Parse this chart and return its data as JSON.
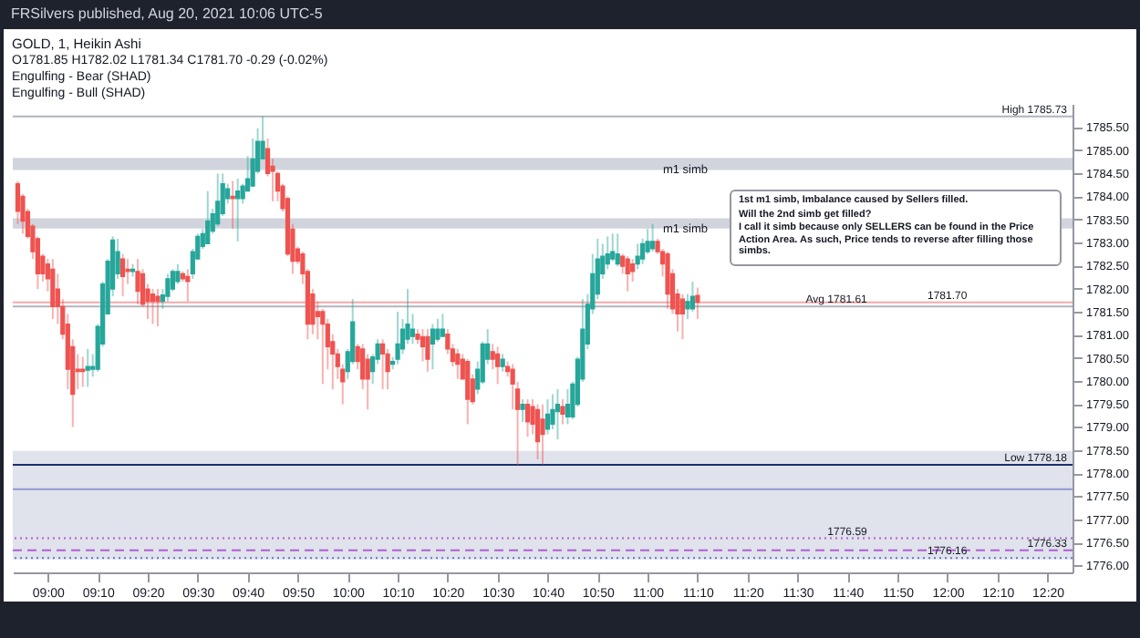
{
  "chart_data": {
    "type": "candlestick",
    "title": "GOLD, 1, Heikin Ashi",
    "subtitle": "O1781.85 H1782.02 L1781.34 C1781.70 -0.29 (-0.02%)",
    "annotations": [
      "FRSilvers published, Aug 20, 2021 10:06 UTC-5",
      "Engulfing - Bear (SHAD)",
      "Engulfing - Bull (SHAD)",
      "1st m1 simb, Imbalance caused by Sellers filled.",
      "Will the 2nd simb get filled?",
      "I call it simb because only SELLERS can be found in the Price Action Area. As such, Price tends to reverse after filling those simbs."
    ],
    "x": [
      "2021-08-20T08:54",
      "2021-08-20T08:55",
      "2021-08-20T08:56",
      "2021-08-20T08:57",
      "2021-08-20T08:58",
      "2021-08-20T08:59",
      "2021-08-20T09:00",
      "2021-08-20T09:01",
      "2021-08-20T09:02",
      "2021-08-20T09:03",
      "2021-08-20T09:04",
      "2021-08-20T09:05",
      "2021-08-20T09:06",
      "2021-08-20T09:07",
      "2021-08-20T09:08",
      "2021-08-20T09:09",
      "2021-08-20T09:10",
      "2021-08-20T09:11",
      "2021-08-20T09:12",
      "2021-08-20T09:13",
      "2021-08-20T09:14",
      "2021-08-20T09:15",
      "2021-08-20T09:16",
      "2021-08-20T09:17",
      "2021-08-20T09:18",
      "2021-08-20T09:19",
      "2021-08-20T09:20",
      "2021-08-20T09:21",
      "2021-08-20T09:22",
      "2021-08-20T09:23",
      "2021-08-20T09:24",
      "2021-08-20T09:25",
      "2021-08-20T09:26",
      "2021-08-20T09:27",
      "2021-08-20T09:28",
      "2021-08-20T09:29",
      "2021-08-20T09:30",
      "2021-08-20T09:31",
      "2021-08-20T09:32",
      "2021-08-20T09:33",
      "2021-08-20T09:34",
      "2021-08-20T09:35",
      "2021-08-20T09:36",
      "2021-08-20T09:37",
      "2021-08-20T09:38",
      "2021-08-20T09:39",
      "2021-08-20T09:40",
      "2021-08-20T09:41",
      "2021-08-20T09:42",
      "2021-08-20T09:43",
      "2021-08-20T09:44",
      "2021-08-20T09:45",
      "2021-08-20T09:46",
      "2021-08-20T09:47",
      "2021-08-20T09:48",
      "2021-08-20T09:49",
      "2021-08-20T09:50",
      "2021-08-20T09:51",
      "2021-08-20T09:52",
      "2021-08-20T09:53",
      "2021-08-20T09:54",
      "2021-08-20T09:55",
      "2021-08-20T09:56",
      "2021-08-20T09:57",
      "2021-08-20T09:58",
      "2021-08-20T09:59",
      "2021-08-20T10:00",
      "2021-08-20T10:01",
      "2021-08-20T10:02",
      "2021-08-20T10:03",
      "2021-08-20T10:04",
      "2021-08-20T10:05",
      "2021-08-20T10:06",
      "2021-08-20T10:07",
      "2021-08-20T10:08",
      "2021-08-20T10:09",
      "2021-08-20T10:10",
      "2021-08-20T10:11",
      "2021-08-20T10:12",
      "2021-08-20T10:13",
      "2021-08-20T10:14",
      "2021-08-20T10:15",
      "2021-08-20T10:16",
      "2021-08-20T10:17",
      "2021-08-20T10:18",
      "2021-08-20T10:19",
      "2021-08-20T10:20",
      "2021-08-20T10:21",
      "2021-08-20T10:22",
      "2021-08-20T10:23",
      "2021-08-20T10:24",
      "2021-08-20T10:25",
      "2021-08-20T10:26",
      "2021-08-20T10:27",
      "2021-08-20T10:28",
      "2021-08-20T10:29",
      "2021-08-20T10:30",
      "2021-08-20T10:31",
      "2021-08-20T10:32",
      "2021-08-20T10:33",
      "2021-08-20T10:34",
      "2021-08-20T10:35",
      "2021-08-20T10:36",
      "2021-08-20T10:37",
      "2021-08-20T10:38",
      "2021-08-20T10:39",
      "2021-08-20T10:40",
      "2021-08-20T10:41",
      "2021-08-20T10:42",
      "2021-08-20T10:43",
      "2021-08-20T10:44",
      "2021-08-20T10:45",
      "2021-08-20T10:46",
      "2021-08-20T10:47",
      "2021-08-20T10:48",
      "2021-08-20T10:49",
      "2021-08-20T10:50",
      "2021-08-20T10:51",
      "2021-08-20T10:52",
      "2021-08-20T10:53",
      "2021-08-20T10:54",
      "2021-08-20T10:55",
      "2021-08-20T10:56",
      "2021-08-20T10:57",
      "2021-08-20T10:58",
      "2021-08-20T10:59",
      "2021-08-20T11:00",
      "2021-08-20T11:01",
      "2021-08-20T11:02",
      "2021-08-20T11:03",
      "2021-08-20T11:04",
      "2021-08-20T11:05",
      "2021-08-20T11:06",
      "2021-08-20T11:07",
      "2021-08-20T11:08",
      "2021-08-20T11:09",
      "2021-08-20T11:10"
    ],
    "ohlc": [
      [
        1784.27,
        1784.33,
        1783.4,
        1783.67
      ],
      [
        1784.0,
        1784.05,
        1783.19,
        1783.46
      ],
      [
        1783.67,
        1783.73,
        1783.08,
        1783.13
      ],
      [
        1783.35,
        1783.4,
        1782.64,
        1782.8
      ],
      [
        1783.08,
        1783.13,
        1781.99,
        1782.32
      ],
      [
        1782.7,
        1782.75,
        1782.15,
        1782.32
      ],
      [
        1782.53,
        1782.64,
        1781.94,
        1782.21
      ],
      [
        1782.42,
        1782.64,
        1781.34,
        1781.61
      ],
      [
        1781.99,
        1782.32,
        1781.23,
        1781.61
      ],
      [
        1781.61,
        1781.77,
        1780.9,
        1781.01
      ],
      [
        1781.23,
        1781.45,
        1779.82,
        1780.25
      ],
      [
        1780.74,
        1780.9,
        1779.0,
        1779.71
      ],
      [
        1780.25,
        1780.58,
        1779.82,
        1780.2
      ],
      [
        1780.25,
        1780.52,
        1779.87,
        1780.2
      ],
      [
        1780.23,
        1780.69,
        1779.87,
        1780.31
      ],
      [
        1780.25,
        1780.58,
        1780.09,
        1780.31
      ],
      [
        1780.25,
        1781.23,
        1780.2,
        1781.18
      ],
      [
        1780.8,
        1782.15,
        1780.74,
        1782.1
      ],
      [
        1781.45,
        1782.64,
        1781.45,
        1782.59
      ],
      [
        1781.99,
        1783.13,
        1781.83,
        1783.05
      ],
      [
        1782.32,
        1783.08,
        1782.21,
        1782.8
      ],
      [
        1782.64,
        1782.75,
        1781.83,
        1782.26
      ],
      [
        1782.42,
        1782.64,
        1782.1,
        1782.37
      ],
      [
        1782.37,
        1782.53,
        1782.26,
        1782.42
      ],
      [
        1782.37,
        1782.64,
        1781.66,
        1781.94
      ],
      [
        1782.32,
        1782.42,
        1781.61,
        1781.66
      ],
      [
        1781.99,
        1782.1,
        1781.34,
        1781.72
      ],
      [
        1781.88,
        1781.99,
        1781.23,
        1781.72
      ],
      [
        1781.83,
        1781.99,
        1781.18,
        1781.72
      ],
      [
        1781.72,
        1781.99,
        1781.56,
        1781.86
      ],
      [
        1781.83,
        1782.32,
        1781.72,
        1782.21
      ],
      [
        1781.99,
        1782.42,
        1781.94,
        1782.37
      ],
      [
        1782.15,
        1782.53,
        1782.1,
        1782.37
      ],
      [
        1782.32,
        1782.37,
        1782.15,
        1782.21
      ],
      [
        1782.26,
        1782.42,
        1781.72,
        1782.15
      ],
      [
        1782.32,
        1782.86,
        1782.21,
        1782.8
      ],
      [
        1782.64,
        1783.19,
        1782.64,
        1783.13
      ],
      [
        1782.91,
        1783.29,
        1782.86,
        1783.19
      ],
      [
        1782.97,
        1784.11,
        1782.97,
        1783.46
      ],
      [
        1783.24,
        1783.73,
        1783.19,
        1783.62
      ],
      [
        1783.4,
        1784.49,
        1783.35,
        1783.89
      ],
      [
        1783.62,
        1784.49,
        1783.57,
        1784.27
      ],
      [
        1783.95,
        1784.27,
        1783.84,
        1784.16
      ],
      [
        1784.0,
        1784.33,
        1783.29,
        1783.95
      ],
      [
        1783.95,
        1784.38,
        1783.02,
        1784.11
      ],
      [
        1783.95,
        1784.27,
        1783.84,
        1784.22
      ],
      [
        1784.11,
        1784.87,
        1784.11,
        1784.38
      ],
      [
        1784.22,
        1785.25,
        1784.22,
        1784.81
      ],
      [
        1784.54,
        1785.47,
        1784.49,
        1785.19
      ],
      [
        1784.81,
        1785.73,
        1784.81,
        1785.19
      ],
      [
        1785.03,
        1785.25,
        1784.43,
        1784.49
      ],
      [
        1784.65,
        1784.81,
        1783.89,
        1784.54
      ],
      [
        1784.49,
        1784.54,
        1783.89,
        1784.11
      ],
      [
        1784.22,
        1784.27,
        1783.67,
        1783.73
      ],
      [
        1783.95,
        1784.0,
        1782.7,
        1782.75
      ],
      [
        1783.29,
        1783.4,
        1782.32,
        1782.59
      ],
      [
        1782.86,
        1782.91,
        1782.53,
        1782.59
      ],
      [
        1782.75,
        1782.8,
        1782.1,
        1782.32
      ],
      [
        1782.37,
        1782.42,
        1780.9,
        1781.23
      ],
      [
        1781.88,
        1781.99,
        1781.01,
        1781.23
      ],
      [
        1781.5,
        1781.72,
        1780.9,
        1781.39
      ],
      [
        1781.5,
        1781.56,
        1779.93,
        1781.23
      ],
      [
        1781.23,
        1781.34,
        1780.25,
        1780.74
      ],
      [
        1780.85,
        1781.01,
        1779.82,
        1780.58
      ],
      [
        1780.58,
        1780.69,
        1780.04,
        1780.31
      ],
      [
        1780.25,
        1780.36,
        1779.49,
        1779.98
      ],
      [
        1780.2,
        1780.69,
        1780.04,
        1780.63
      ],
      [
        1780.42,
        1781.77,
        1780.36,
        1781.28
      ],
      [
        1780.74,
        1780.8,
        1780.25,
        1780.42
      ],
      [
        1780.69,
        1780.8,
        1779.82,
        1780.04
      ],
      [
        1780.47,
        1780.58,
        1779.38,
        1780.04
      ],
      [
        1780.2,
        1780.58,
        1779.93,
        1780.52
      ],
      [
        1780.47,
        1780.9,
        1780.36,
        1780.8
      ],
      [
        1780.8,
        1780.9,
        1779.82,
        1780.58
      ],
      [
        1780.58,
        1780.69,
        1779.82,
        1780.2
      ],
      [
        1780.36,
        1780.52,
        1780.25,
        1780.42
      ],
      [
        1780.47,
        1781.5,
        1780.36,
        1780.8
      ],
      [
        1780.69,
        1781.34,
        1780.58,
        1781.12
      ],
      [
        1780.9,
        1781.99,
        1780.8,
        1781.23
      ],
      [
        1780.96,
        1781.45,
        1780.8,
        1781.12
      ],
      [
        1781.01,
        1781.12,
        1780.8,
        1780.9
      ],
      [
        1780.96,
        1781.12,
        1780.42,
        1780.74
      ],
      [
        1780.96,
        1781.12,
        1780.2,
        1780.47
      ],
      [
        1780.8,
        1781.23,
        1780.25,
        1781.12
      ],
      [
        1780.9,
        1781.34,
        1780.85,
        1781.12
      ],
      [
        1780.96,
        1781.45,
        1780.96,
        1781.12
      ],
      [
        1781.01,
        1781.12,
        1780.58,
        1780.69
      ],
      [
        1780.69,
        1780.8,
        1780.31,
        1780.42
      ],
      [
        1780.58,
        1780.69,
        1780.04,
        1780.36
      ],
      [
        1780.47,
        1780.58,
        1780.04,
        1780.04
      ],
      [
        1780.42,
        1780.47,
        1779.06,
        1779.6
      ],
      [
        1780.04,
        1780.14,
        1779.49,
        1779.55
      ],
      [
        1779.82,
        1780.42,
        1779.71,
        1780.25
      ],
      [
        1779.98,
        1780.85,
        1779.93,
        1780.8
      ],
      [
        1780.47,
        1781.12,
        1780.36,
        1780.8
      ],
      [
        1780.63,
        1780.8,
        1780.25,
        1780.47
      ],
      [
        1780.58,
        1780.74,
        1779.93,
        1780.31
      ],
      [
        1780.31,
        1780.58,
        1780.2,
        1780.47
      ],
      [
        1780.31,
        1780.42,
        1780.09,
        1780.2
      ],
      [
        1780.25,
        1780.36,
        1779.38,
        1779.93
      ],
      [
        1779.82,
        1779.98,
        1778.18,
        1779.38
      ],
      [
        1779.38,
        1779.6,
        1779.11,
        1779.49
      ],
      [
        1779.49,
        1779.6,
        1778.79,
        1779.11
      ],
      [
        1779.44,
        1779.6,
        1778.84,
        1779.06
      ],
      [
        1779.38,
        1779.49,
        1778.3,
        1778.68
      ],
      [
        1779.17,
        1779.49,
        1778.19,
        1778.84
      ],
      [
        1778.95,
        1779.6,
        1778.84,
        1779.28
      ],
      [
        1779.06,
        1779.71,
        1778.95,
        1779.38
      ],
      [
        1779.33,
        1779.82,
        1778.73,
        1779.49
      ],
      [
        1779.44,
        1779.6,
        1779.06,
        1779.28
      ],
      [
        1779.22,
        1779.82,
        1779.06,
        1779.49
      ],
      [
        1779.22,
        1779.98,
        1779.17,
        1779.93
      ],
      [
        1779.49,
        1780.52,
        1779.44,
        1780.47
      ],
      [
        1780.04,
        1781.77,
        1779.98,
        1781.12
      ],
      [
        1780.8,
        1781.88,
        1780.69,
        1781.66
      ],
      [
        1781.56,
        1782.75,
        1781.45,
        1782.32
      ],
      [
        1781.88,
        1783.08,
        1781.77,
        1782.64
      ],
      [
        1782.32,
        1782.97,
        1782.21,
        1782.7
      ],
      [
        1782.53,
        1783.13,
        1782.42,
        1782.75
      ],
      [
        1782.64,
        1783.19,
        1782.59,
        1782.8
      ],
      [
        1782.53,
        1783.19,
        1782.48,
        1782.75
      ],
      [
        1782.7,
        1782.75,
        1782.32,
        1782.48
      ],
      [
        1782.64,
        1782.7,
        1781.94,
        1782.32
      ],
      [
        1782.53,
        1782.64,
        1782.15,
        1782.37
      ],
      [
        1782.53,
        1782.97,
        1782.42,
        1782.7
      ],
      [
        1782.64,
        1783.08,
        1782.53,
        1782.97
      ],
      [
        1782.8,
        1783.29,
        1782.75,
        1783.02
      ],
      [
        1782.86,
        1783.4,
        1782.8,
        1783.02
      ],
      [
        1783.02,
        1783.08,
        1782.75,
        1782.8
      ],
      [
        1782.8,
        1782.86,
        1782.26,
        1782.53
      ],
      [
        1782.75,
        1782.8,
        1781.56,
        1781.88
      ],
      [
        1782.32,
        1782.42,
        1781.45,
        1781.56
      ],
      [
        1781.88,
        1781.99,
        1781.07,
        1781.45
      ],
      [
        1781.77,
        1781.88,
        1780.9,
        1781.45
      ],
      [
        1781.56,
        1781.88,
        1781.34,
        1781.72
      ],
      [
        1781.56,
        1782.15,
        1781.5,
        1781.83
      ],
      [
        1781.85,
        1782.02,
        1781.34,
        1781.7
      ]
    ],
    "colors": [
      "#ef5350",
      "#ef5350",
      "#ef5350",
      "#ef5350",
      "#ef5350",
      "#ef5350",
      "#ef5350",
      "#ef5350",
      "#ef5350",
      "#ef5350",
      "#ef5350",
      "#ef5350",
      "#ef5350",
      "#ef5350",
      "#26a69a",
      "#26a69a",
      "#26a69a",
      "#26a69a",
      "#26a69a",
      "#26a69a",
      "#26a69a",
      "#ef5350",
      "#ef5350",
      "#26a69a",
      "#ef5350",
      "#ef5350",
      "#ef5350",
      "#ef5350",
      "#ef5350",
      "#26a69a",
      "#26a69a",
      "#26a69a",
      "#26a69a",
      "#ef5350",
      "#ef5350",
      "#26a69a",
      "#26a69a",
      "#26a69a",
      "#26a69a",
      "#26a69a",
      "#26a69a",
      "#26a69a",
      "#26a69a",
      "#ef5350",
      "#26a69a",
      "#26a69a",
      "#26a69a",
      "#26a69a",
      "#26a69a",
      "#26a69a",
      "#ef5350",
      "#ef5350",
      "#ef5350",
      "#ef5350",
      "#ef5350",
      "#ef5350",
      "#ef5350",
      "#ef5350",
      "#ef5350",
      "#ef5350",
      "#ef5350",
      "#ef5350",
      "#ef5350",
      "#ef5350",
      "#ef5350",
      "#ef5350",
      "#26a69a",
      "#26a69a",
      "#ef5350",
      "#ef5350",
      "#ef5350",
      "#26a69a",
      "#26a69a",
      "#ef5350",
      "#ef5350",
      "#26a69a",
      "#26a69a",
      "#26a69a",
      "#26a69a",
      "#26a69a",
      "#ef5350",
      "#ef5350",
      "#ef5350",
      "#26a69a",
      "#26a69a",
      "#26a69a",
      "#ef5350",
      "#ef5350",
      "#ef5350",
      "#ef5350",
      "#ef5350",
      "#ef5350",
      "#26a69a",
      "#26a69a",
      "#26a69a",
      "#ef5350",
      "#ef5350",
      "#26a69a",
      "#ef5350",
      "#ef5350",
      "#ef5350",
      "#26a69a",
      "#ef5350",
      "#ef5350",
      "#ef5350",
      "#ef5350",
      "#26a69a",
      "#26a69a",
      "#26a69a",
      "#ef5350",
      "#26a69a",
      "#26a69a",
      "#26a69a",
      "#26a69a",
      "#26a69a",
      "#26a69a",
      "#26a69a",
      "#26a69a",
      "#26a69a",
      "#26a69a",
      "#26a69a",
      "#ef5350",
      "#ef5350",
      "#ef5350",
      "#26a69a",
      "#26a69a",
      "#26a69a",
      "#26a69a",
      "#ef5350",
      "#ef5350",
      "#ef5350",
      "#ef5350",
      "#ef5350",
      "#ef5350",
      "#26a69a",
      "#26a69a",
      "#ef5350"
    ],
    "xlim": [
      "2021-08-20T08:53",
      "2021-08-20T12:25"
    ],
    "xticks": [
      {
        "value": "2021-08-20T09:00",
        "label": "09:00"
      },
      {
        "value": "2021-08-20T09:10",
        "label": "09:10"
      },
      {
        "value": "2021-08-20T09:20",
        "label": "09:20"
      },
      {
        "value": "2021-08-20T09:30",
        "label": "09:30"
      },
      {
        "value": "2021-08-20T09:40",
        "label": "09:40"
      },
      {
        "value": "2021-08-20T09:50",
        "label": "09:50"
      },
      {
        "value": "2021-08-20T10:00",
        "label": "10:00"
      },
      {
        "value": "2021-08-20T10:10",
        "label": "10:10"
      },
      {
        "value": "2021-08-20T10:20",
        "label": "10:20"
      },
      {
        "value": "2021-08-20T10:30",
        "label": "10:30"
      },
      {
        "value": "2021-08-20T10:40",
        "label": "10:40"
      },
      {
        "value": "2021-08-20T10:50",
        "label": "10:50"
      },
      {
        "value": "2021-08-20T11:00",
        "label": "11:00"
      },
      {
        "value": "2021-08-20T11:10",
        "label": "11:10"
      },
      {
        "value": "2021-08-20T11:20",
        "label": "11:20"
      },
      {
        "value": "2021-08-20T11:30",
        "label": "11:30"
      },
      {
        "value": "2021-08-20T11:40",
        "label": "11:40"
      },
      {
        "value": "2021-08-20T11:50",
        "label": "11:50"
      },
      {
        "value": "2021-08-20T12:00",
        "label": "12:00"
      },
      {
        "value": "2021-08-20T12:10",
        "label": "12:10"
      },
      {
        "value": "2021-08-20T12:20",
        "label": "12:20"
      }
    ],
    "ylim": [
      1775.85,
      1786.0
    ],
    "yticks": [
      {
        "value": 1776,
        "label": "1776.00"
      },
      {
        "value": 1776.5,
        "label": "1776.50"
      },
      {
        "value": 1777,
        "label": "1777.00"
      },
      {
        "value": 1777.5,
        "label": "1777.50"
      },
      {
        "value": 1778,
        "label": "1778.00"
      },
      {
        "value": 1778.5,
        "label": "1778.50"
      },
      {
        "value": 1779,
        "label": "1779.00"
      },
      {
        "value": 1779.5,
        "label": "1779.50"
      },
      {
        "value": 1780,
        "label": "1780.00"
      },
      {
        "value": 1780.5,
        "label": "1780.50"
      },
      {
        "value": 1781,
        "label": "1781.00"
      },
      {
        "value": 1781.5,
        "label": "1781.50"
      },
      {
        "value": 1782,
        "label": "1782.00"
      },
      {
        "value": 1782.5,
        "label": "1782.50"
      },
      {
        "value": 1783,
        "label": "1783.00"
      },
      {
        "value": 1783.5,
        "label": "1783.50"
      },
      {
        "value": 1784,
        "label": "1784.00"
      },
      {
        "value": 1784.5,
        "label": "1784.50"
      },
      {
        "value": 1785,
        "label": "1785.00"
      },
      {
        "value": 1785.5,
        "label": "1785.50"
      }
    ],
    "bands": [
      {
        "axis": "y",
        "from": 1784.57,
        "to": 1784.83,
        "label": "m1 simb",
        "color": "#d1d4dc"
      },
      {
        "axis": "y",
        "from": 1783.3,
        "to": 1783.52,
        "label": "m1 simb",
        "color": "#d1d4dc"
      },
      {
        "axis": "y",
        "from": 1776.13,
        "to": 1778.48,
        "color": "#e0e3eb"
      }
    ],
    "ref_lines": [
      {
        "axis": "y",
        "value": 1785.73,
        "label": "High 1785.73",
        "color": "#b2b5be",
        "line_style": "solid"
      },
      {
        "axis": "y",
        "value": 1781.7,
        "label": "1781.70",
        "color": "#f7a9a9",
        "line_style": "solid"
      },
      {
        "axis": "y",
        "value": 1781.61,
        "label": "Avg 1781.61",
        "color": "#b2b5be",
        "line_style": "solid"
      },
      {
        "axis": "y",
        "value": 1778.18,
        "label": "Low 1778.18",
        "color": "#1c2f6b",
        "line_style": "solid"
      },
      {
        "axis": "y",
        "value": 1777.65,
        "color": "#8f9ad0",
        "line_style": "solid"
      },
      {
        "axis": "y",
        "value": 1776.59,
        "label": "1776.59",
        "color": "#b05ed6",
        "line_style": "dotted"
      },
      {
        "axis": "y",
        "value": 1776.33,
        "label": "1776.33",
        "color": "#b05ed6",
        "line_style": "dashed"
      },
      {
        "axis": "y",
        "value": 1776.16,
        "label": "1776.16",
        "color": "#6c74c9",
        "line_style": "dotted"
      }
    ]
  }
}
